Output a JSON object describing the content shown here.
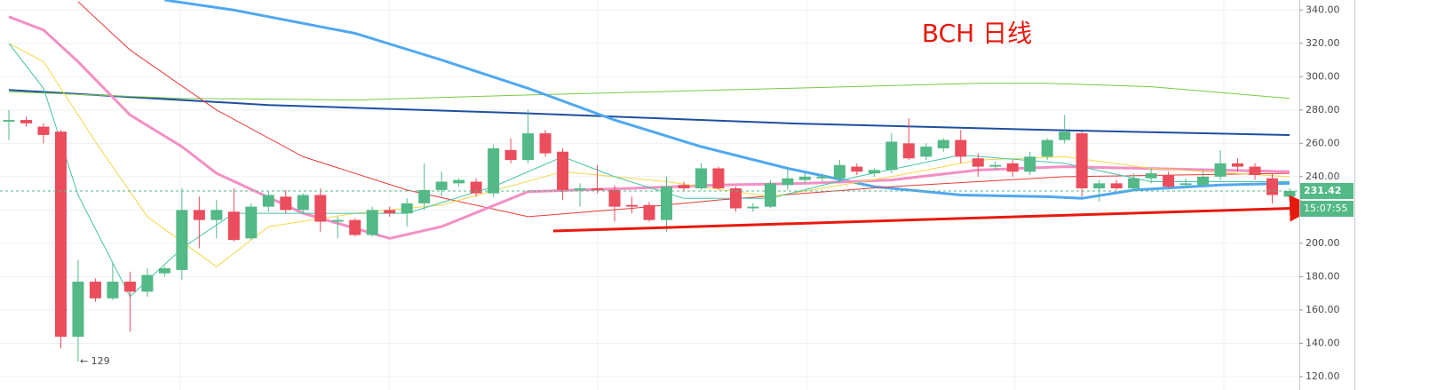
{
  "chart_data": {
    "type": "candlestick",
    "title": "BCH 日线",
    "open": [
      273,
      274,
      270,
      267,
      144,
      177,
      167,
      177,
      171,
      182,
      184,
      220,
      214,
      219,
      203,
      222,
      228,
      220,
      229,
      213,
      214,
      205,
      220,
      218,
      224,
      232,
      236,
      237,
      230,
      256,
      250,
      266,
      255,
      232,
      233,
      232,
      223,
      223,
      214,
      235,
      233,
      245,
      233,
      221,
      222,
      235,
      238,
      239,
      239,
      246,
      242,
      244,
      260,
      252,
      257,
      262,
      251,
      246,
      248,
      243,
      252,
      262,
      266,
      233,
      236,
      233,
      239,
      241,
      235,
      235,
      240,
      248,
      246,
      239,
      228
    ],
    "high": [
      280,
      276,
      272,
      268,
      190,
      179,
      188,
      183,
      185,
      186,
      233,
      228,
      226,
      233,
      224,
      231,
      232,
      230,
      233,
      216,
      215,
      222,
      222,
      227,
      248,
      243,
      239,
      239,
      259,
      263,
      280,
      268,
      257,
      236,
      247,
      235,
      228,
      225,
      240,
      237,
      248,
      246,
      234,
      224,
      238,
      246,
      242,
      242,
      250,
      248,
      245,
      266,
      275,
      260,
      263,
      268,
      254,
      249,
      250,
      255,
      263,
      277,
      267,
      238,
      238,
      242,
      245,
      243,
      239,
      243,
      256,
      251,
      248,
      242,
      233
    ],
    "low": [
      262,
      270,
      260,
      137,
      129,
      165,
      166,
      147,
      168,
      180,
      178,
      197,
      203,
      201,
      202,
      219,
      218,
      218,
      207,
      203,
      204,
      204,
      216,
      210,
      220,
      228,
      234,
      228,
      228,
      248,
      248,
      252,
      226,
      222,
      230,
      213,
      218,
      213,
      207,
      231,
      232,
      232,
      219,
      219,
      221,
      232,
      236,
      237,
      237,
      241,
      240,
      242,
      250,
      250,
      255,
      248,
      240,
      244,
      240,
      241,
      250,
      260,
      228,
      225,
      232,
      232,
      236,
      233,
      233,
      234,
      238,
      243,
      238,
      224,
      227
    ],
    "close": [
      274,
      272,
      265,
      144,
      177,
      167,
      177,
      171,
      181,
      185,
      220,
      214,
      220,
      202,
      222,
      229,
      220,
      229,
      213,
      214,
      205,
      220,
      218,
      224,
      232,
      237,
      238,
      230,
      257,
      250,
      266,
      254,
      232,
      233,
      232,
      222,
      222,
      214,
      234,
      233,
      245,
      233,
      221,
      222,
      236,
      239,
      240,
      240,
      247,
      243,
      244,
      261,
      251,
      258,
      262,
      252,
      246,
      247,
      243,
      252,
      262,
      267,
      233,
      236,
      233,
      239,
      242,
      234,
      236,
      240,
      248,
      246,
      241,
      229,
      231.42
    ],
    "up_color": "#53b987",
    "down_color": "#eb4d5c",
    "series": [
      {
        "color": "#1e4fa0",
        "width": 2,
        "x": [
          0,
          15,
          30,
          45,
          60,
          74
        ],
        "values": [
          292,
          283,
          278,
          272,
          268,
          265
        ]
      },
      {
        "color": "#7ac943",
        "width": 1,
        "x": [
          0,
          10,
          20,
          30,
          45,
          56,
          60,
          66,
          74
        ],
        "values": [
          291,
          287,
          286,
          289,
          293,
          296,
          296,
          294,
          287
        ]
      },
      {
        "color": "#4fa8f0",
        "width": 3,
        "x": [
          9,
          13,
          20,
          25,
          30,
          35,
          40,
          45,
          50,
          55,
          60,
          62,
          65,
          70,
          74
        ],
        "values": [
          346,
          340,
          326,
          310,
          293,
          274,
          258,
          245,
          234,
          229,
          228,
          227,
          232,
          235,
          236
        ]
      },
      {
        "color": "#e83a3a",
        "width": 1,
        "x": [
          4,
          7,
          12,
          17,
          23,
          30,
          36,
          41,
          51,
          61,
          74
        ],
        "values": [
          345,
          316,
          280,
          252,
          232,
          216,
          221,
          226,
          234,
          240,
          242
        ]
      },
      {
        "color": "#f48fc4",
        "width": 3,
        "x": [
          0,
          2,
          4,
          7,
          10,
          12,
          17,
          22,
          25,
          30,
          36,
          41,
          46,
          51,
          56,
          61,
          74
        ],
        "values": [
          336,
          328,
          309,
          277,
          258,
          242,
          218,
          203,
          210,
          231,
          233,
          235,
          236,
          238,
          244,
          246,
          243
        ]
      },
      {
        "color": "#f4d648",
        "width": 1,
        "x": [
          0,
          2,
          5,
          8,
          12,
          15,
          20,
          25,
          32,
          38,
          44,
          51,
          56,
          61,
          66,
          74
        ],
        "values": [
          320,
          309,
          261,
          216,
          186,
          210,
          218,
          223,
          243,
          237,
          228,
          240,
          250,
          252,
          245,
          240
        ]
      },
      {
        "color": "#45c4a8",
        "width": 1,
        "x": [
          0,
          2,
          4,
          7,
          10,
          13,
          17,
          23,
          28,
          32,
          35,
          39,
          44,
          49,
          55,
          61,
          66,
          74
        ],
        "values": [
          320,
          293,
          229,
          168,
          197,
          218,
          218,
          218,
          234,
          252,
          240,
          227,
          227,
          240,
          253,
          248,
          237,
          237
        ]
      }
    ],
    "ylim": [
      112,
      346
    ],
    "yticks": [
      {
        "value": 120,
        "label": "120.00"
      },
      {
        "value": 140,
        "label": "140.00"
      },
      {
        "value": 160,
        "label": "160.00"
      },
      {
        "value": 180,
        "label": "180.00"
      },
      {
        "value": 200,
        "label": "200.00"
      },
      {
        "value": 220,
        "label": "220.00"
      },
      {
        "value": 240,
        "label": "240.00"
      },
      {
        "value": 260,
        "label": "260.00"
      },
      {
        "value": 280,
        "label": "280.00"
      },
      {
        "value": 300,
        "label": "300.00"
      },
      {
        "value": 320,
        "label": "320.00"
      },
      {
        "value": 340,
        "label": "340.00"
      }
    ],
    "grid": true,
    "last_price": 231.42,
    "countdown": "15:07:55",
    "low_annotation": {
      "index": 4,
      "value": 129,
      "label": "← 129"
    }
  }
}
